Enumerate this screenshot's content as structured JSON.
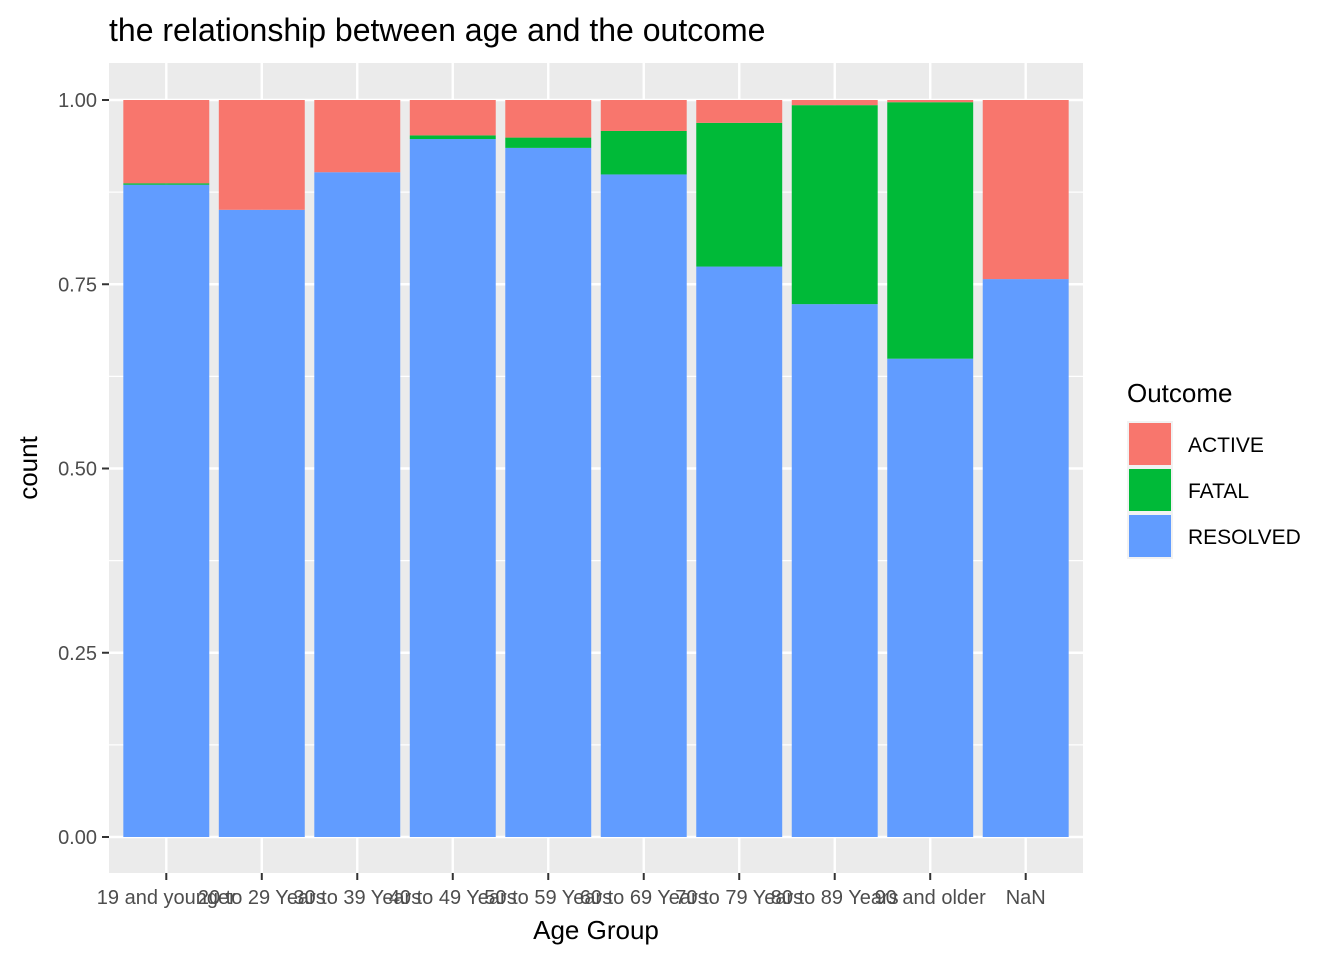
{
  "chart_data": {
    "type": "bar",
    "stacked": true,
    "title": "the relationship between age and the outcome",
    "xlabel": "Age Group",
    "ylabel": "count",
    "ylim": [
      0,
      1
    ],
    "yticks": [
      "0.00",
      "0.25",
      "0.50",
      "0.75",
      "1.00"
    ],
    "categories": [
      "19 and younger",
      "20 to 29 Years",
      "30 to 39 Years",
      "40 to 49 Years",
      "50 to 59 Years",
      "60 to 69 Years",
      "70 to 79 Years",
      "80 to 89 Years",
      "90 and older",
      "NaN"
    ],
    "series": [
      {
        "name": "RESOLVED",
        "color": "#619CFF",
        "values": [
          0.885,
          0.851,
          0.902,
          0.947,
          0.935,
          0.899,
          0.774,
          0.723,
          0.649,
          0.757
        ]
      },
      {
        "name": "FATAL",
        "color": "#00BA38",
        "values": [
          0.002,
          0.0,
          0.0,
          0.005,
          0.014,
          0.059,
          0.195,
          0.27,
          0.348,
          0.0
        ]
      },
      {
        "name": "ACTIVE",
        "color": "#F8766D",
        "values": [
          0.113,
          0.149,
          0.098,
          0.048,
          0.051,
          0.042,
          0.031,
          0.007,
          0.003,
          0.243
        ]
      }
    ],
    "legend": {
      "title": "Outcome",
      "position": "right",
      "entries": [
        "ACTIVE",
        "FATAL",
        "RESOLVED"
      ]
    },
    "grid": true,
    "background": "#EBEBEB"
  }
}
